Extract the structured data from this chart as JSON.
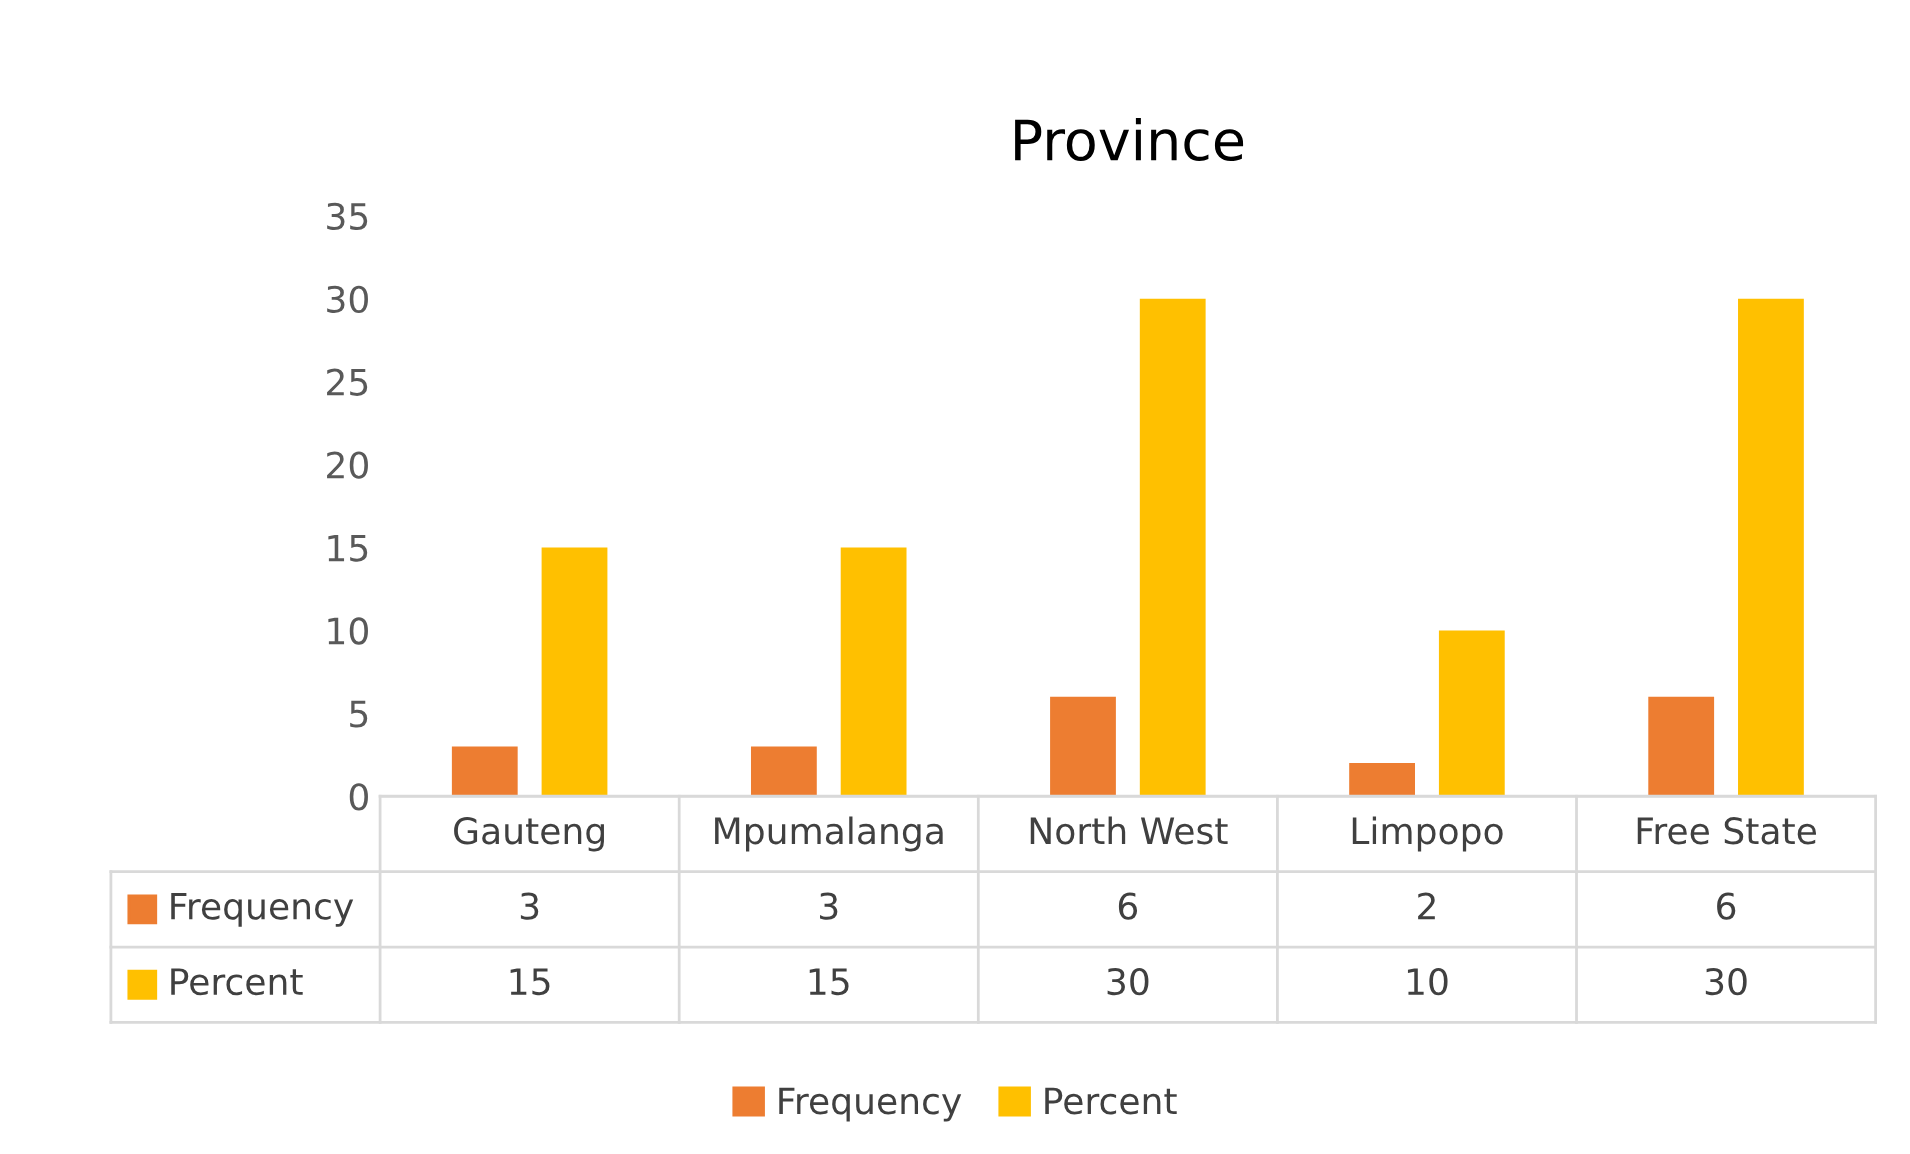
{
  "chart_data": {
    "type": "bar",
    "title": "Province",
    "categories": [
      "Gauteng",
      "Mpumalanga",
      "North West",
      "Limpopo",
      "Free State"
    ],
    "series": [
      {
        "name": "Frequency",
        "color": "#ed7d31",
        "values": [
          3,
          3,
          6,
          2,
          6
        ]
      },
      {
        "name": "Percent",
        "color": "#ffc000",
        "values": [
          15,
          15,
          30,
          10,
          30
        ]
      }
    ],
    "ylim": [
      0,
      35
    ],
    "yticks": [
      0,
      5,
      10,
      15,
      20,
      25,
      30,
      35
    ],
    "grid": false,
    "data_labels": true,
    "legend": "bottom"
  }
}
